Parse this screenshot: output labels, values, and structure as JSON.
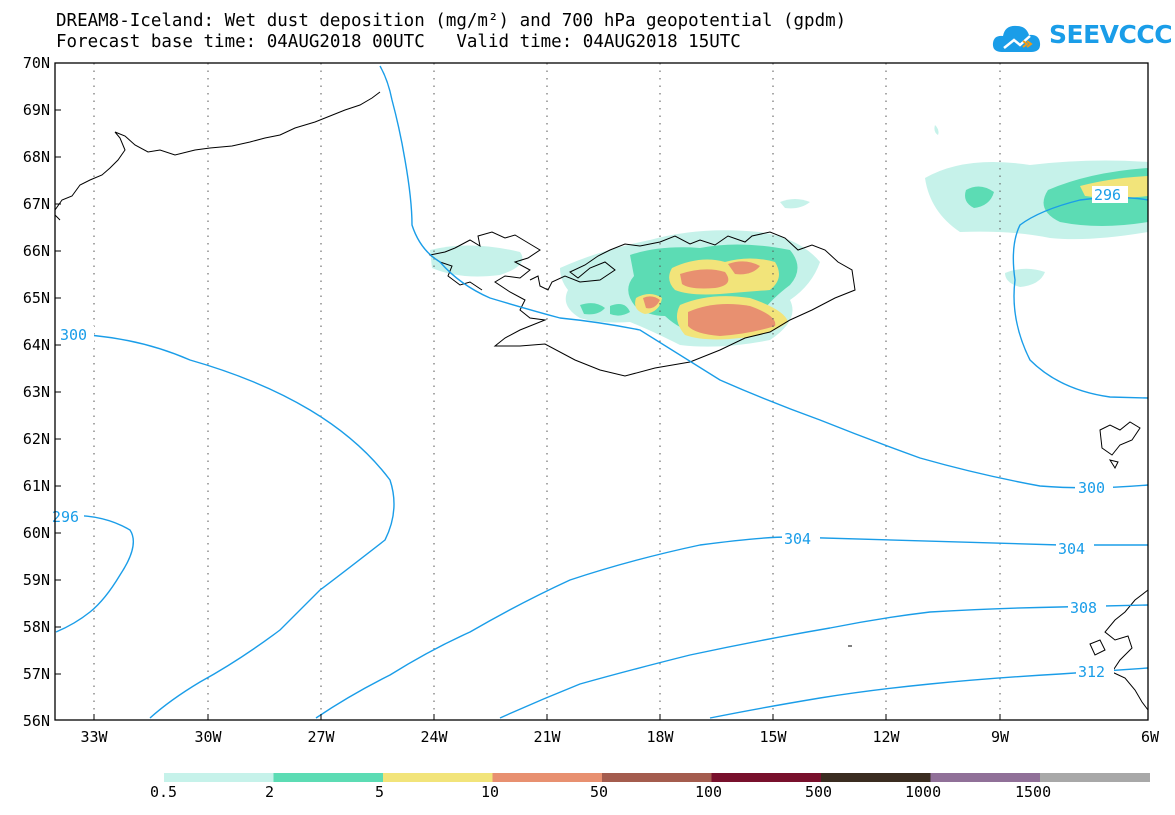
{
  "header": {
    "title_line1": "DREAM8-Iceland: Wet dust deposition (mg/m²) and 700 hPa geopotential (gpdm)",
    "title_line2": "Forecast base time: 04AUG2018 00UTC   Valid time: 04AUG2018 15UTC"
  },
  "logo": {
    "text": "SEEVCCC",
    "icon": "cloud-icon",
    "color": "#1a9de8"
  },
  "map": {
    "lat_labels": [
      "70N",
      "69N",
      "68N",
      "67N",
      "66N",
      "65N",
      "64N",
      "63N",
      "62N",
      "61N",
      "60N",
      "59N",
      "58N",
      "57N",
      "56N"
    ],
    "lon_labels": [
      "33W",
      "30W",
      "27W",
      "24W",
      "21W",
      "18W",
      "15W",
      "12W",
      "9W",
      "6W"
    ],
    "contour_color": "#1a9de8",
    "contour_labels": [
      "300",
      "296",
      "300",
      "304",
      "304",
      "308",
      "312",
      "296"
    ]
  },
  "colorbar": {
    "colors": [
      "#c6f2ea",
      "#5cdcb4",
      "#f2e47a",
      "#e89070",
      "#a45c4e",
      "#78102c",
      "#3a2c20",
      "#907098",
      "#a8a8a8"
    ],
    "labels": [
      "0.5",
      "2",
      "5",
      "10",
      "50",
      "100",
      "500",
      "1000",
      "1500"
    ]
  }
}
